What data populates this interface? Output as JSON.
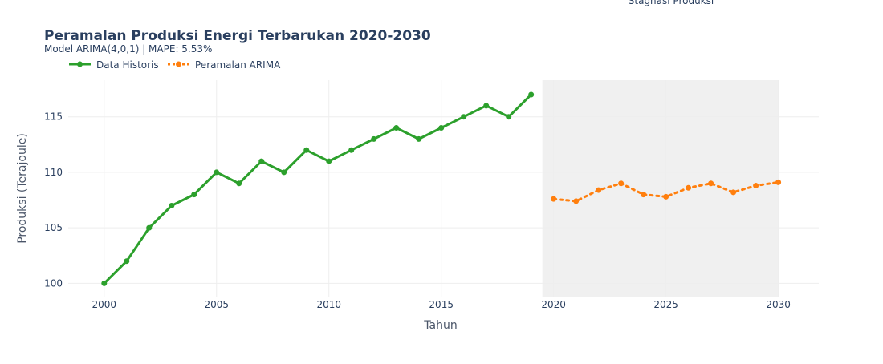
{
  "chart_data": {
    "type": "line",
    "title": "Peramalan Produksi Energi Terbarukan 2020-2030",
    "subtitle": "Model ARIMA(4,0,1) | MAPE: 5.53%",
    "xlabel": "Tahun",
    "ylabel": "Produksi (Terajoule)",
    "annotation": "Stagnasi Produksi",
    "xlim": [
      1998.4,
      2031.8
    ],
    "ylim": [
      98.8,
      118.3
    ],
    "x_ticks": [
      2000,
      2005,
      2010,
      2015,
      2020,
      2025,
      2030
    ],
    "y_ticks": [
      100,
      105,
      110,
      115
    ],
    "grid": true,
    "legend_position": "top-left",
    "forecast_region": {
      "x_start": 2019.5,
      "x_end": 2030,
      "color": "#f0f0f0"
    },
    "series": [
      {
        "name": "Data Historis",
        "color": "#2ca02c",
        "line_style": "solid",
        "x": [
          2000,
          2001,
          2002,
          2003,
          2004,
          2005,
          2006,
          2007,
          2008,
          2009,
          2010,
          2011,
          2012,
          2013,
          2014,
          2015,
          2016,
          2017,
          2018,
          2019
        ],
        "y": [
          100,
          102,
          105,
          107,
          108,
          110,
          109,
          111,
          110,
          112,
          111,
          112,
          113,
          114,
          113,
          114,
          115,
          116,
          115,
          117
        ]
      },
      {
        "name": "Peramalan ARIMA",
        "color": "#ff7f0e",
        "line_style": "dotted",
        "x": [
          2020,
          2021,
          2022,
          2023,
          2024,
          2025,
          2026,
          2027,
          2028,
          2029,
          2030
        ],
        "y": [
          107.6,
          107.4,
          108.4,
          109.0,
          108.0,
          107.8,
          108.6,
          109.0,
          108.2,
          108.8,
          109.1
        ]
      }
    ]
  }
}
